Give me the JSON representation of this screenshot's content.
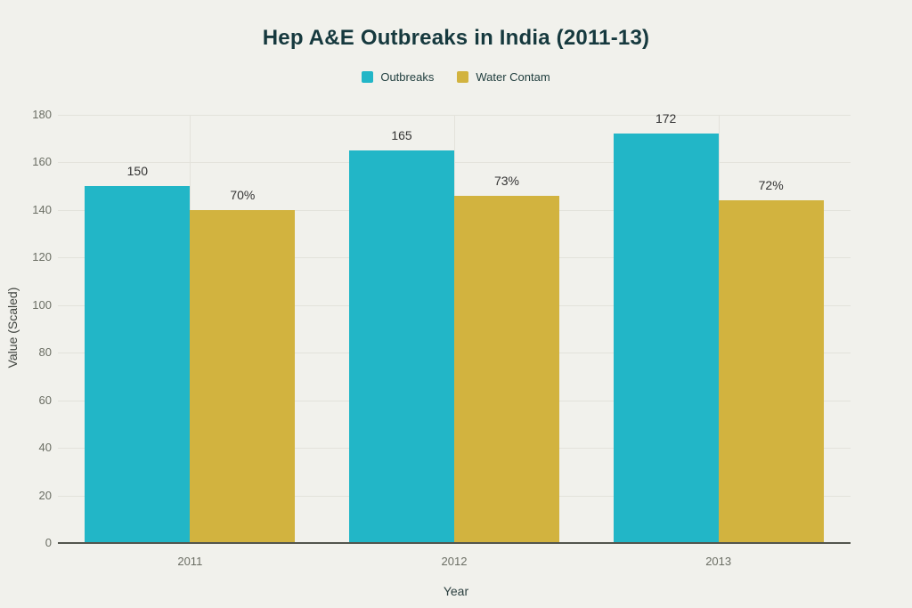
{
  "chart_data": {
    "type": "bar",
    "title": "Hep A&E Outbreaks in India (2011-13)",
    "xlabel": "Year",
    "ylabel": "Value (Scaled)",
    "categories": [
      "2011",
      "2012",
      "2013"
    ],
    "series": [
      {
        "name": "Outbreaks",
        "color": "#22b6c7",
        "values": [
          150,
          165,
          172
        ],
        "labels": [
          "150",
          "165",
          "172"
        ]
      },
      {
        "name": "Water Contam",
        "color": "#d2b33f",
        "values": [
          140,
          146,
          144
        ],
        "labels": [
          "70%",
          "73%",
          "72%"
        ]
      }
    ],
    "ylim": [
      0,
      180
    ],
    "yticks": [
      0,
      20,
      40,
      60,
      80,
      100,
      120,
      140,
      160,
      180
    ],
    "grid": true,
    "legend_position": "top"
  },
  "colors": {
    "background": "#f1f1ec",
    "title": "#16393e",
    "axis_text": "#6b6e64",
    "grid": "#e3e2db",
    "axis_line": "#52554d",
    "bar_label_text": "#333333",
    "legend_text": "#1e3c3c"
  }
}
